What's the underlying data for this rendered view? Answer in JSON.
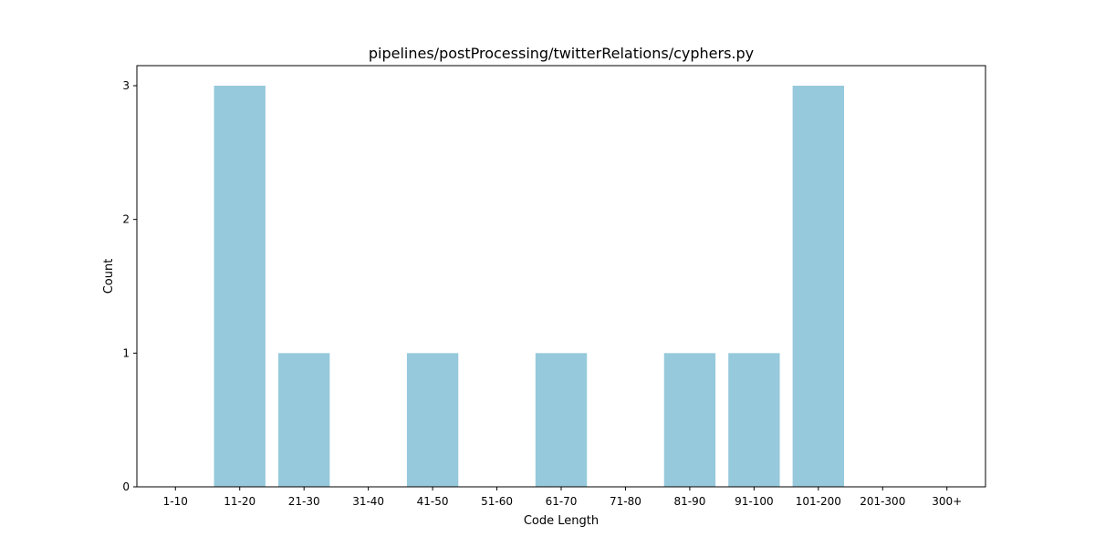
{
  "chart_data": {
    "type": "bar",
    "title": "pipelines/postProcessing/twitterRelations/cyphers.py",
    "xlabel": "Code Length",
    "ylabel": "Count",
    "categories": [
      "1-10",
      "11-20",
      "21-30",
      "31-40",
      "41-50",
      "51-60",
      "61-70",
      "71-80",
      "81-90",
      "91-100",
      "101-200",
      "201-300",
      "300+"
    ],
    "values": [
      0,
      3,
      1,
      0,
      1,
      0,
      1,
      0,
      1,
      1,
      3,
      0,
      0
    ],
    "yticks": [
      "0",
      "1",
      "2",
      "3"
    ],
    "ylim": [
      0,
      3.15
    ],
    "grid": false,
    "legend": "none",
    "bar_color": "#96c9dc"
  }
}
